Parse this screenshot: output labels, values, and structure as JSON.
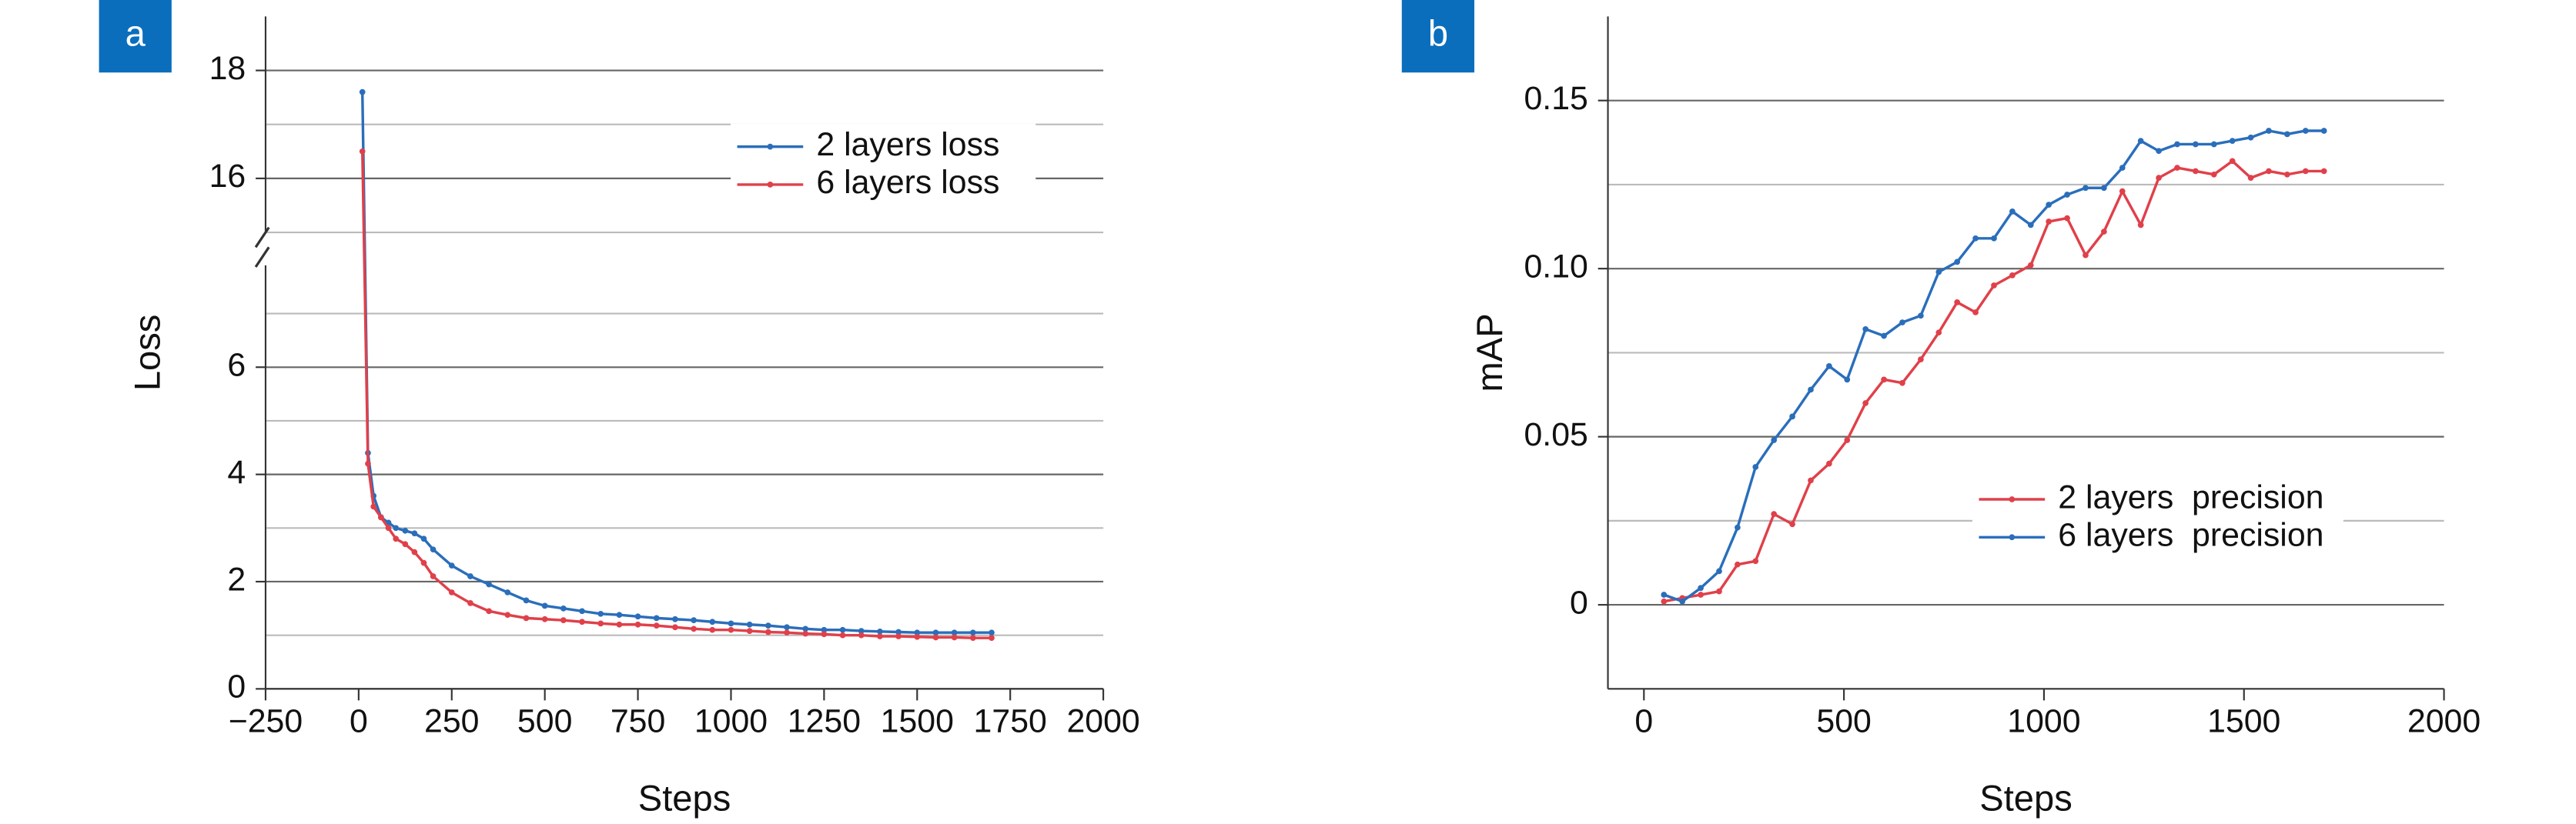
{
  "chart_data": [
    {
      "type": "line",
      "panel": "a",
      "x_label": "Steps",
      "y_label": "Loss",
      "xlim": [
        -250,
        2000
      ],
      "xticks": [
        {
          "value": -250,
          "label": "−250"
        },
        0,
        250,
        500,
        750,
        1000,
        1250,
        1500,
        1750,
        2000
      ],
      "ylim": [
        0,
        19
      ],
      "y_break": [
        7.9,
        15
      ],
      "yticks": [
        0,
        2,
        4,
        6,
        16,
        18
      ],
      "minor_yticks": [
        1,
        3,
        5,
        7,
        15,
        17
      ],
      "grid": true,
      "legend": "upper right",
      "x": [
        10,
        25,
        40,
        60,
        80,
        100,
        125,
        150,
        175,
        200,
        250,
        300,
        350,
        400,
        450,
        500,
        550,
        600,
        650,
        700,
        750,
        800,
        850,
        900,
        950,
        1000,
        1050,
        1100,
        1150,
        1200,
        1250,
        1300,
        1350,
        1400,
        1450,
        1500,
        1550,
        1600,
        1650,
        1700
      ],
      "series": [
        {
          "name": "2 layers loss",
          "color": "#2a6ebb",
          "values": [
            17.6,
            4.4,
            3.6,
            3.2,
            3.1,
            3.0,
            2.95,
            2.9,
            2.8,
            2.6,
            2.3,
            2.1,
            1.95,
            1.8,
            1.65,
            1.55,
            1.5,
            1.45,
            1.4,
            1.38,
            1.35,
            1.32,
            1.3,
            1.28,
            1.25,
            1.22,
            1.2,
            1.18,
            1.15,
            1.12,
            1.1,
            1.1,
            1.08,
            1.07,
            1.06,
            1.05,
            1.05,
            1.05,
            1.05,
            1.05
          ]
        },
        {
          "name": "6 layers loss",
          "color": "#e0404a",
          "values": [
            16.5,
            4.2,
            3.4,
            3.2,
            3.0,
            2.8,
            2.7,
            2.55,
            2.35,
            2.1,
            1.8,
            1.6,
            1.45,
            1.38,
            1.32,
            1.3,
            1.28,
            1.25,
            1.22,
            1.2,
            1.2,
            1.18,
            1.15,
            1.12,
            1.1,
            1.1,
            1.08,
            1.06,
            1.05,
            1.03,
            1.02,
            1.0,
            1.0,
            0.98,
            0.98,
            0.97,
            0.96,
            0.96,
            0.95,
            0.95
          ]
        }
      ]
    },
    {
      "type": "line",
      "panel": "b",
      "x_label": "Steps",
      "y_label": "mAP",
      "xlim": [
        -90,
        2000
      ],
      "xticks": [
        0,
        500,
        1000,
        1500,
        2000
      ],
      "ylim": [
        -0.025,
        0.175
      ],
      "yticks": [
        0,
        0.05,
        {
          "value": 0.1,
          "label": "0.10"
        },
        0.15
      ],
      "minor_yticks": [
        0.025,
        0.075,
        0.125
      ],
      "grid": true,
      "legend": "lower right",
      "x": [
        50,
        96,
        142,
        188,
        234,
        279,
        325,
        371,
        417,
        463,
        508,
        554,
        600,
        646,
        692,
        737,
        783,
        829,
        875,
        921,
        967,
        1012,
        1058,
        1104,
        1150,
        1196,
        1242,
        1287,
        1333,
        1379,
        1425,
        1471,
        1517,
        1562,
        1608,
        1654,
        1700
      ],
      "series": [
        {
          "name": "2 layers  precision",
          "color": "#e0404a",
          "values": [
            0.001,
            0.002,
            0.003,
            0.004,
            0.012,
            0.013,
            0.027,
            0.024,
            0.037,
            0.042,
            0.049,
            0.06,
            0.067,
            0.066,
            0.073,
            0.081,
            0.09,
            0.087,
            0.095,
            0.098,
            0.101,
            0.114,
            0.115,
            0.104,
            0.111,
            0.123,
            0.113,
            0.127,
            0.13,
            0.129,
            0.128,
            0.132,
            0.127,
            0.129,
            0.128,
            0.129,
            0.129
          ]
        },
        {
          "name": "6 layers  precision",
          "color": "#2a6ebb",
          "values": [
            0.003,
            0.001,
            0.005,
            0.01,
            0.023,
            0.041,
            0.049,
            0.056,
            0.064,
            0.071,
            0.067,
            0.082,
            0.08,
            0.084,
            0.086,
            0.099,
            0.102,
            0.109,
            0.109,
            0.117,
            0.113,
            0.119,
            0.122,
            0.124,
            0.124,
            0.13,
            0.138,
            0.135,
            0.137,
            0.137,
            0.137,
            0.138,
            0.139,
            0.141,
            0.14,
            0.141,
            0.141
          ]
        }
      ]
    }
  ]
}
